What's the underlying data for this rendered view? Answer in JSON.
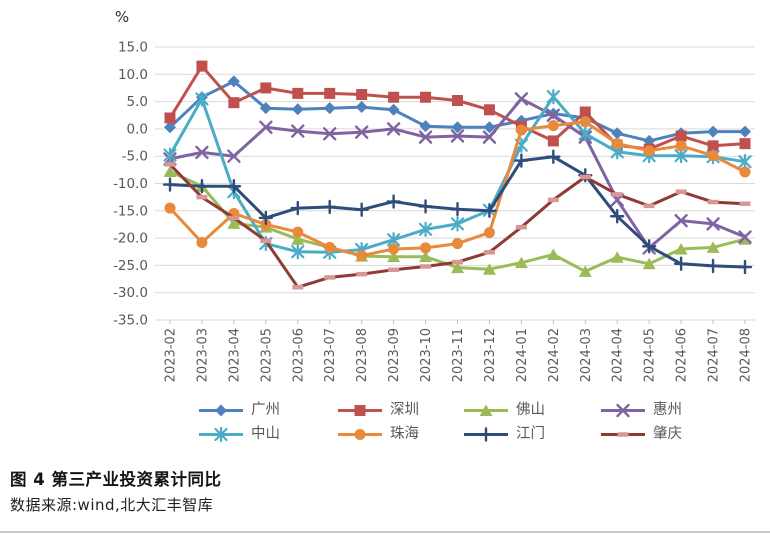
{
  "figure": {
    "percent_label": "%",
    "caption_title": "图 4  第三产业投资累计同比",
    "caption_source": "数据来源:wind,北大汇丰智库"
  },
  "chart_data": {
    "type": "line",
    "title": "",
    "xlabel": "",
    "ylabel": "%",
    "ylim": [
      -35,
      15
    ],
    "ytick_step": 5,
    "yticks": [
      "15.0",
      "10.0",
      "5.0",
      "0.0",
      "-5.0",
      "-10.0",
      "-15.0",
      "-20.0",
      "-25.0",
      "-30.0",
      "-35.0"
    ],
    "grid": true,
    "legend_position": "bottom",
    "categories": [
      "2023-02",
      "2023-03",
      "2023-04",
      "2023-05",
      "2023-06",
      "2023-07",
      "2023-08",
      "2023-09",
      "2023-10",
      "2023-11",
      "2023-12",
      "2024-01",
      "2024-02",
      "2024-03",
      "2024-04",
      "2024-05",
      "2024-06",
      "2024-07",
      "2024-08"
    ],
    "series": [
      {
        "id": "guangzhou",
        "name": "广州",
        "color": "#4F81BD",
        "marker": "diamond",
        "values": [
          0.3,
          5.8,
          8.7,
          3.8,
          3.6,
          3.8,
          4.0,
          3.5,
          0.5,
          0.3,
          0.3,
          1.5,
          2.8,
          2.0,
          -0.8,
          -2.2,
          -0.8,
          -0.5,
          -0.5
        ]
      },
      {
        "id": "shenzhen",
        "name": "深圳",
        "color": "#C0504D",
        "marker": "square",
        "values": [
          2.0,
          11.5,
          4.8,
          7.5,
          6.5,
          6.5,
          6.3,
          5.8,
          5.8,
          5.2,
          3.5,
          0.5,
          -2.2,
          3.1,
          -3.0,
          -3.7,
          -1.3,
          -3.1,
          -2.7
        ]
      },
      {
        "id": "foshan",
        "name": "佛山",
        "color": "#9BBB59",
        "marker": "triangle",
        "values": [
          -7.8,
          -10.5,
          -17.3,
          -18.0,
          -20.2,
          -21.7,
          -23.3,
          -23.4,
          -23.4,
          -25.4,
          -25.7,
          -24.5,
          -23.0,
          -26.1,
          -23.5,
          -24.7,
          -22.0,
          -21.7,
          -20.2
        ]
      },
      {
        "id": "huizhou",
        "name": "惠州",
        "color": "#8064A2",
        "marker": "x",
        "values": [
          -5.5,
          -4.3,
          -5.0,
          0.3,
          -0.4,
          -0.9,
          -0.6,
          0.0,
          -1.5,
          -1.3,
          -1.5,
          5.5,
          2.5,
          -1.5,
          -13.0,
          -21.8,
          -16.8,
          -17.4,
          -19.8
        ]
      },
      {
        "id": "zhongshan",
        "name": "中山",
        "color": "#4BACC6",
        "marker": "asterisk",
        "values": [
          -4.8,
          5.5,
          -11.5,
          -21.0,
          -22.5,
          -22.6,
          -22.1,
          -20.3,
          -18.4,
          -17.4,
          -14.9,
          -3.0,
          5.9,
          -0.9,
          -4.2,
          -4.9,
          -4.9,
          -5.1,
          -6.0
        ]
      },
      {
        "id": "zhuhai",
        "name": "珠海",
        "color": "#E8893C",
        "marker": "circle",
        "values": [
          -14.5,
          -20.8,
          -15.5,
          -17.5,
          -18.9,
          -21.7,
          -23.2,
          -22.0,
          -21.8,
          -21.0,
          -19.0,
          -0.2,
          0.6,
          1.3,
          -2.7,
          -4.0,
          -3.1,
          -4.9,
          -7.9
        ]
      },
      {
        "id": "jiangmen",
        "name": "江门",
        "color": "#2E4D7B",
        "marker": "plus",
        "values": [
          -10.2,
          -10.5,
          -10.5,
          -16.3,
          -14.5,
          -14.3,
          -14.8,
          -13.3,
          -14.2,
          -14.7,
          -15.0,
          -5.8,
          -5.1,
          -8.5,
          -16.0,
          -21.5,
          -24.7,
          -25.1,
          -25.3
        ]
      },
      {
        "id": "zhaoqing",
        "name": "肇庆",
        "color": "#8E3B36",
        "marker": "dash",
        "marker_color": "#D99694",
        "values": [
          -6.5,
          -12.5,
          -16.3,
          -20.5,
          -29.0,
          -27.2,
          -26.6,
          -25.8,
          -25.2,
          -24.4,
          -22.6,
          -18.0,
          -13.0,
          -8.8,
          -12.0,
          -14.1,
          -11.5,
          -13.4,
          -13.7
        ]
      }
    ]
  }
}
